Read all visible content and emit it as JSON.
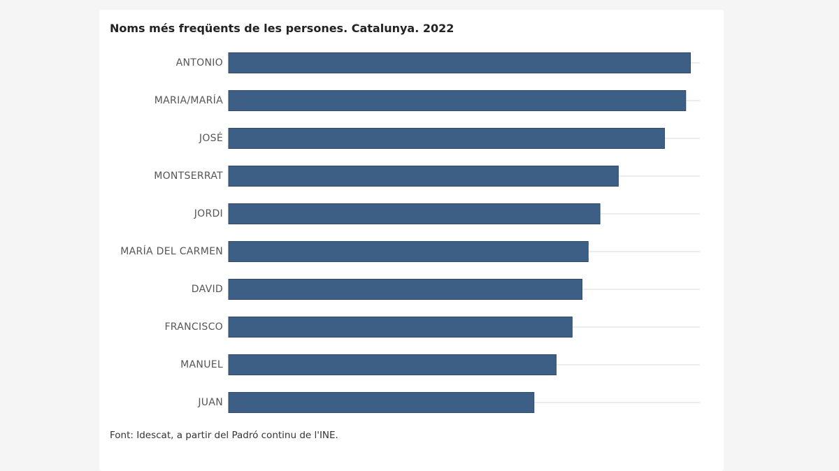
{
  "chart_data": {
    "type": "bar",
    "orientation": "horizontal",
    "title": "Noms més freqüents de les persones. Catalunya. 2022",
    "categories": [
      "ANTONIO",
      "MARIA/MARÍA",
      "JOSÉ",
      "MONTSERRAT",
      "JORDI",
      "MARÍA DEL CARMEN",
      "DAVID",
      "FRANCISCO",
      "MANUEL",
      "JUAN"
    ],
    "values": [
      98,
      97,
      92.5,
      82.7,
      78.8,
      76.3,
      75,
      72.9,
      69.5,
      64.8
    ],
    "xlim": [
      0,
      100
    ],
    "grid": true,
    "bar_color": "#3d5f85",
    "grid_color": "#d9d9d9"
  },
  "source": "Font: Idescat, a partir del Padró continu de l'INE."
}
